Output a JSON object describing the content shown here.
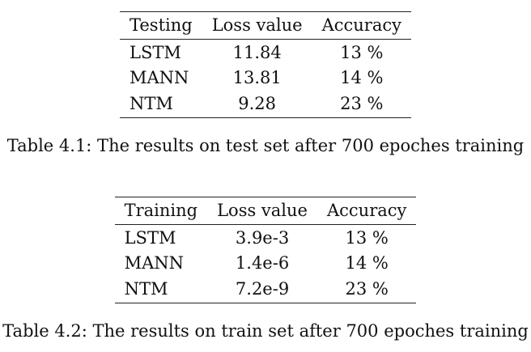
{
  "tables": [
    {
      "headers": [
        "Testing",
        "Loss value",
        "Accuracy"
      ],
      "rows": [
        [
          "LSTM",
          "11.84",
          "13 %"
        ],
        [
          "MANN",
          "13.81",
          "14 %"
        ],
        [
          "NTM",
          "9.28",
          "23 %"
        ]
      ],
      "caption": "Table 4.1: The results on test set after 700 epoches training"
    },
    {
      "headers": [
        "Training",
        "Loss value",
        "Accuracy"
      ],
      "rows": [
        [
          "LSTM",
          "3.9e-3",
          "13 %"
        ],
        [
          "MANN",
          "1.4e-6",
          "14 %"
        ],
        [
          "NTM",
          "7.2e-9",
          "23 %"
        ]
      ],
      "caption": "Table 4.2: The results on train set after 700 epoches training"
    }
  ]
}
